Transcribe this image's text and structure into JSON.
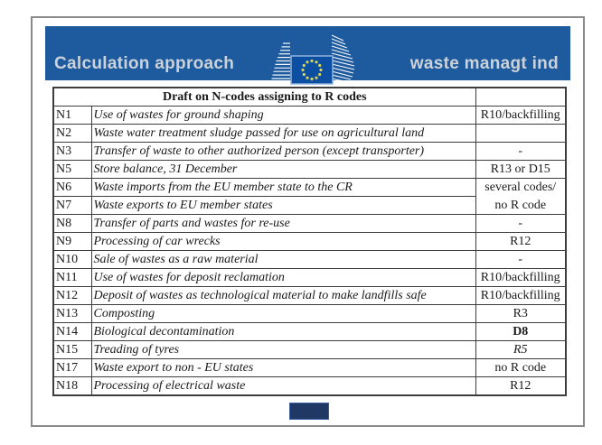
{
  "header": {
    "title_left": "Calculation approach",
    "title_right": "waste managt ind",
    "logo": "european-commission-logo"
  },
  "colors": {
    "bar_blue": "#1e5b9e",
    "flag_blue": "#0b4ea2",
    "flag_border": "#8fb3dd",
    "star_yellow": "#d8d455",
    "title_text": "#ccd2d9",
    "page_box_fill": "#1f3864",
    "page_box_border": "#3a5fa5",
    "table_border": "#3d3d3d"
  },
  "table": {
    "header_title": "Draft on N-codes assigning to R codes",
    "header_rcode": "",
    "rows": [
      {
        "code": "N1",
        "description": "Use of wastes for ground shaping",
        "rcode": "R10/backfilling"
      },
      {
        "code": "N2",
        "description": "Waste water treatment sludge passed for use on agricultural land",
        "rcode": ""
      },
      {
        "code": "N3",
        "description": "Transfer of waste to other authorized person (except transporter)",
        "rcode": "-"
      },
      {
        "code": "N5",
        "description": "Store balance, 31 December",
        "rcode": "R13 or D15"
      },
      {
        "code": "N6",
        "description": "Waste imports from the EU member state to the CR",
        "rcode_lines": [
          "several codes/",
          "no R code"
        ],
        "rcode_rowspan": 2
      },
      {
        "code": "N7",
        "description": "Waste exports to EU member states",
        "rcode": null
      },
      {
        "code": "N8",
        "description": "Transfer of parts and wastes for re-use",
        "rcode": "-"
      },
      {
        "code": "N9",
        "description": "Processing of car wrecks",
        "rcode": "R12"
      },
      {
        "code": "N10",
        "description": "Sale of wastes as a raw material",
        "rcode": "-"
      },
      {
        "code": "N11",
        "description": "Use of wastes for deposit reclamation",
        "rcode": "R10/backfilling"
      },
      {
        "code": "N12",
        "description": "Deposit of wastes as technological material to make landfills safe",
        "rcode": "R10/backfilling"
      },
      {
        "code": "N13",
        "description": "Composting",
        "rcode": "R3"
      },
      {
        "code": "N14",
        "description": "Biological decontamination",
        "rcode": "D8",
        "rcode_style": "bold"
      },
      {
        "code": "N15",
        "description": "Treading of tyres",
        "rcode": "R5",
        "rcode_style": "italic"
      },
      {
        "code": "N17",
        "description": "Waste export to non - EU states",
        "rcode": "no R code"
      },
      {
        "code": "N18",
        "description": "Processing of electrical waste",
        "rcode": "R12"
      }
    ]
  }
}
